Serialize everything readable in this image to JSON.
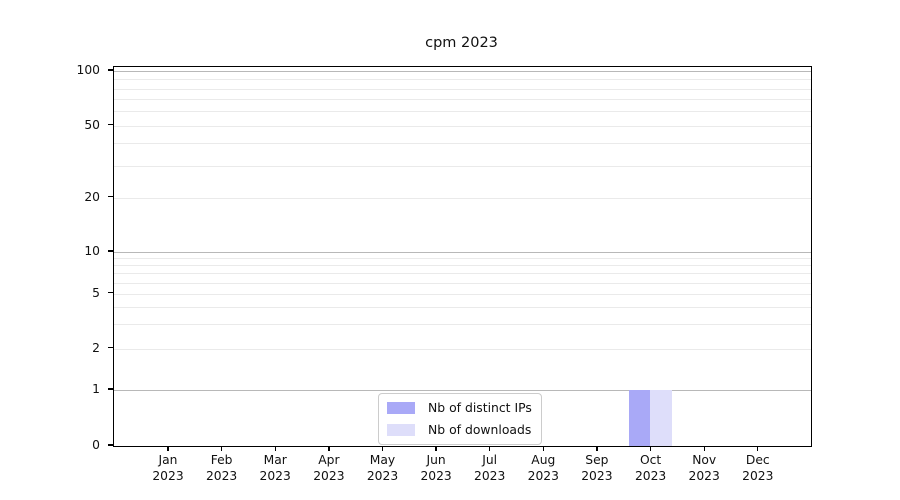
{
  "chart_data": {
    "type": "bar",
    "title": "cpm 2023",
    "categories": [
      "Jan",
      "Feb",
      "Mar",
      "Apr",
      "May",
      "Jun",
      "Jul",
      "Aug",
      "Sep",
      "Oct",
      "Nov",
      "Dec"
    ],
    "category_year": "2023",
    "series": [
      {
        "name": "Nb of distinct IPs",
        "color": "#a9a9f7",
        "values": [
          0,
          0,
          0,
          0,
          0,
          0,
          0,
          0,
          0,
          1,
          0,
          0
        ]
      },
      {
        "name": "Nb of downloads",
        "color": "#dedefa",
        "values": [
          0,
          0,
          0,
          0,
          0,
          0,
          0,
          0,
          0,
          1,
          0,
          0
        ]
      }
    ],
    "xlabel": "",
    "ylabel": "",
    "y_scale": "symlog",
    "ylim": [
      0,
      105
    ],
    "y_tick_labels": [
      100,
      50,
      20,
      10,
      5,
      2,
      1,
      0
    ],
    "y_major_gridlines": [
      1,
      10,
      100
    ],
    "y_minor_gridlines": [
      2,
      3,
      4,
      5,
      6,
      7,
      8,
      9,
      20,
      30,
      40,
      50,
      60,
      70,
      80,
      90
    ],
    "grid": "horizontal",
    "legend": {
      "position": "lower center",
      "entries": [
        "Nb of distinct IPs",
        "Nb of downloads"
      ]
    }
  }
}
